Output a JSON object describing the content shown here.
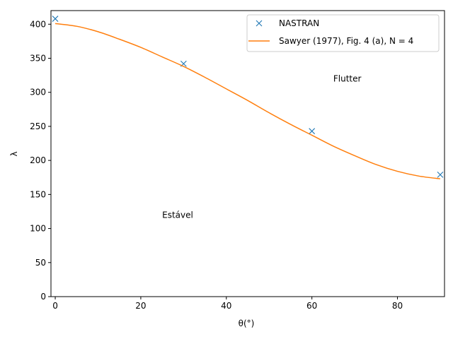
{
  "chart_data": {
    "type": "line",
    "xlabel": "θ(°)",
    "ylabel": "λ",
    "xlim": [
      -1,
      91
    ],
    "ylim": [
      0,
      420
    ],
    "xticks": [
      0,
      20,
      40,
      60,
      80
    ],
    "yticks": [
      0,
      50,
      100,
      150,
      200,
      250,
      300,
      350,
      400
    ],
    "grid": false,
    "legend_position": "upper right",
    "series": [
      {
        "name": "NASTRAN",
        "type": "scatter",
        "marker": "x",
        "color": "#1f77b4",
        "x": [
          0,
          30,
          60,
          90
        ],
        "y": [
          408,
          342,
          243,
          179
        ]
      },
      {
        "name": "Sawyer (1977), Fig. 4 (a), N = 4",
        "type": "line",
        "color": "#ff7f0e",
        "x": [
          0,
          5,
          10,
          15,
          20,
          25,
          30,
          35,
          40,
          45,
          50,
          55,
          60,
          65,
          70,
          75,
          80,
          85,
          90
        ],
        "y": [
          401,
          397,
          389,
          378,
          366,
          352,
          338,
          322,
          305,
          288,
          270,
          253,
          237,
          221,
          207,
          194,
          184,
          177,
          173
        ]
      }
    ],
    "annotations": [
      {
        "text": "Flutter",
        "x": 65,
        "y": 320
      },
      {
        "text": "Estável",
        "x": 25,
        "y": 120
      }
    ]
  }
}
